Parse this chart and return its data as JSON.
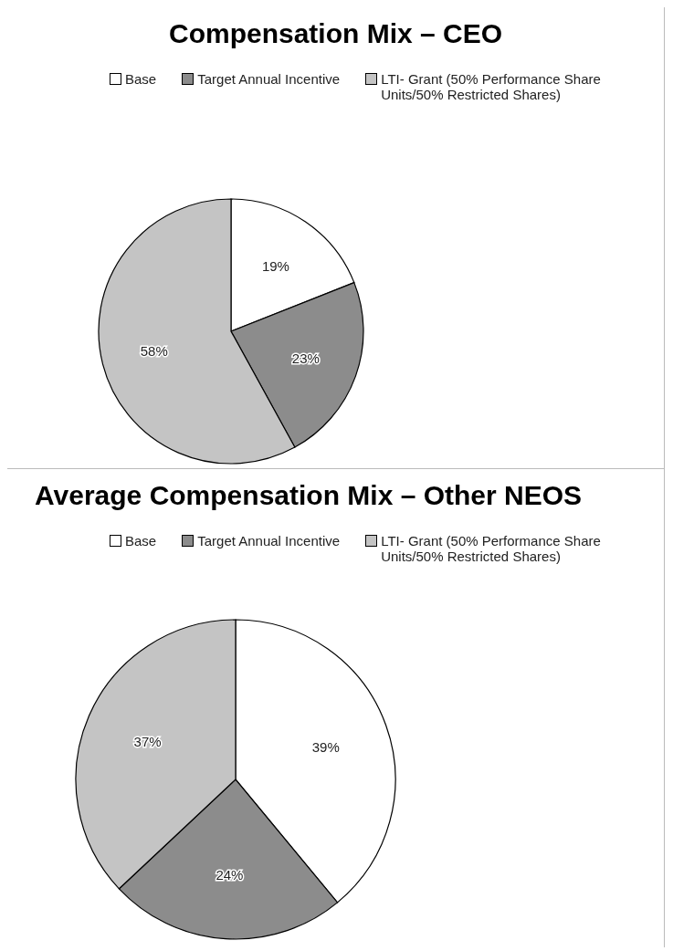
{
  "chart_data": [
    {
      "type": "pie",
      "title": "Compensation Mix – CEO",
      "categories": [
        "Base",
        "Target Annual Incentive",
        "LTI- Grant (50% Performance Share Units/50% Restricted Shares)"
      ],
      "values": [
        19,
        23,
        58
      ],
      "value_labels": [
        "19%",
        "23%",
        "58%"
      ],
      "colors": [
        "#ffffff",
        "#8c8c8c",
        "#c4c4c4"
      ],
      "legend": "top"
    },
    {
      "type": "pie",
      "title": "Average Compensation Mix – Other NEOS",
      "categories": [
        "Base",
        "Target Annual Incentive",
        "LTI- Grant (50% Performance Share Units/50% Restricted Shares)"
      ],
      "values": [
        39,
        24,
        37
      ],
      "value_labels": [
        "39%",
        "24%",
        "37%"
      ],
      "colors": [
        "#ffffff",
        "#8c8c8c",
        "#c4c4c4"
      ],
      "legend": "top"
    }
  ]
}
